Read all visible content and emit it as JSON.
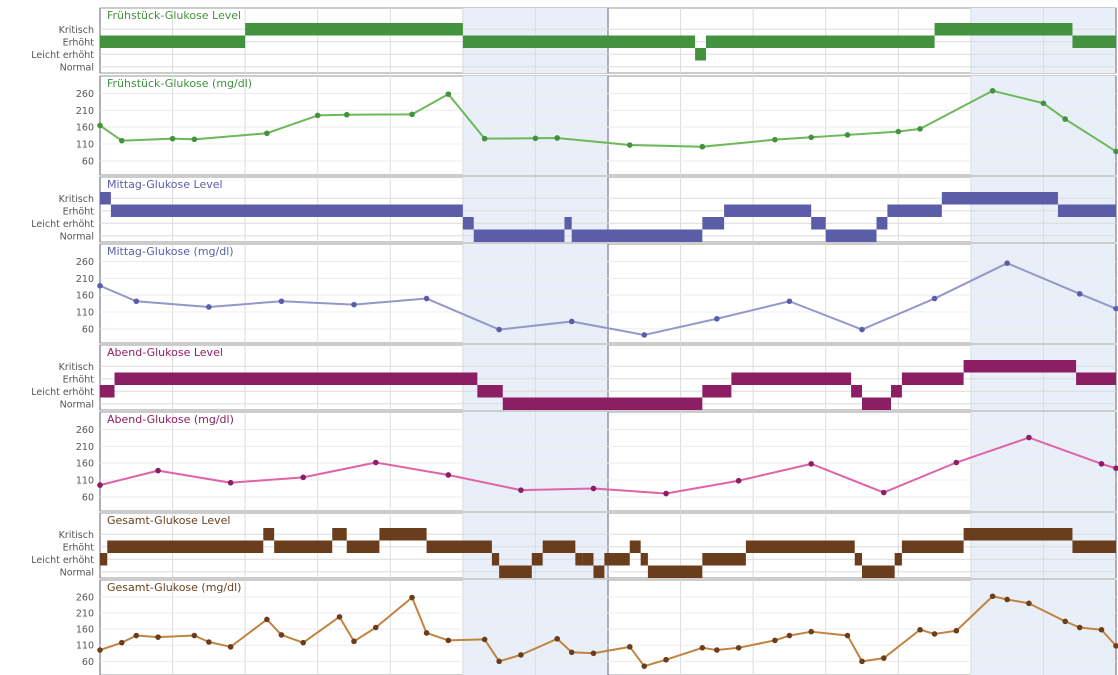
{
  "colors": {
    "fruehstueck_bar": "#43923f",
    "fruehstueck_line": "#6cb85a",
    "fruehstueck_title": "#43923f",
    "mittag_bar": "#5b5da9",
    "mittag_line": "#9497c8",
    "mittag_title": "#5b5da9",
    "abend_bar": "#8c1e63",
    "abend_line": "#df63a6",
    "abend_title": "#8c1e63",
    "gesamt_bar": "#6a3e1d",
    "gesamt_line": "#c08441",
    "gesamt_title": "#6a3e1d",
    "weekend_band": "#e8eff8",
    "grid": "#dcdcdc",
    "panel_border": "#9a9a9a"
  },
  "level_labels": [
    "Kritisch",
    "Erhöht",
    "Leicht erhöht",
    "Normal"
  ],
  "y_ticks": [
    260,
    210,
    160,
    110,
    60
  ],
  "chart_data": [
    {
      "type": "step",
      "title": "Frühstück-Glukose Level",
      "color_key": "fruehstueck_bar",
      "categories": [
        "Kritisch",
        "Erhöht",
        "Leicht erhöht",
        "Normal"
      ],
      "x_range": [
        0,
        14
      ],
      "segments": [
        {
          "x0": 0,
          "x1": 2,
          "level": "Erhöht"
        },
        {
          "x0": 2,
          "x1": 5,
          "level": "Kritisch"
        },
        {
          "x0": 5,
          "x1": 8.2,
          "level": "Erhöht"
        },
        {
          "x0": 8.2,
          "x1": 8.35,
          "level": "Leicht erhöht"
        },
        {
          "x0": 8.35,
          "x1": 11.5,
          "level": "Erhöht"
        },
        {
          "x0": 11.5,
          "x1": 13.4,
          "level": "Kritisch"
        },
        {
          "x0": 13.4,
          "x1": 14,
          "level": "Erhöht"
        }
      ]
    },
    {
      "type": "line",
      "title": "Frühstück-Glukose (mg/dl)",
      "color_key": "fruehstueck_line",
      "x_range": [
        0,
        14
      ],
      "y_range": [
        30,
        300
      ],
      "points": [
        [
          0,
          165
        ],
        [
          0.3,
          120
        ],
        [
          1.0,
          126
        ],
        [
          1.3,
          124
        ],
        [
          2.3,
          142
        ],
        [
          3.0,
          195
        ],
        [
          3.4,
          197
        ],
        [
          4.3,
          198
        ],
        [
          4.8,
          258
        ],
        [
          5.3,
          126
        ],
        [
          6.0,
          127
        ],
        [
          6.3,
          128
        ],
        [
          7.3,
          107
        ],
        [
          8.3,
          102
        ],
        [
          9.3,
          123
        ],
        [
          9.8,
          130
        ],
        [
          10.3,
          137
        ],
        [
          11.0,
          147
        ],
        [
          11.3,
          155
        ],
        [
          12.3,
          268
        ],
        [
          13.0,
          231
        ],
        [
          13.3,
          184
        ],
        [
          14.0,
          88
        ]
      ]
    },
    {
      "type": "step",
      "title": "Mittag-Glukose Level",
      "color_key": "mittag_bar",
      "categories": [
        "Kritisch",
        "Erhöht",
        "Leicht erhöht",
        "Normal"
      ],
      "x_range": [
        0,
        14
      ],
      "segments": [
        {
          "x0": 0,
          "x1": 0.15,
          "level": "Kritisch"
        },
        {
          "x0": 0.15,
          "x1": 5,
          "level": "Erhöht"
        },
        {
          "x0": 5,
          "x1": 5.15,
          "level": "Leicht erhöht"
        },
        {
          "x0": 5.15,
          "x1": 6.4,
          "level": "Normal"
        },
        {
          "x0": 6.4,
          "x1": 6.5,
          "level": "Leicht erhöht"
        },
        {
          "x0": 6.5,
          "x1": 8.3,
          "level": "Normal"
        },
        {
          "x0": 8.3,
          "x1": 8.6,
          "level": "Leicht erhöht"
        },
        {
          "x0": 8.6,
          "x1": 9.8,
          "level": "Erhöht"
        },
        {
          "x0": 9.8,
          "x1": 10.0,
          "level": "Leicht erhöht"
        },
        {
          "x0": 10.0,
          "x1": 10.7,
          "level": "Normal"
        },
        {
          "x0": 10.7,
          "x1": 10.85,
          "level": "Leicht erhöht"
        },
        {
          "x0": 10.85,
          "x1": 11.6,
          "level": "Erhöht"
        },
        {
          "x0": 11.6,
          "x1": 13.2,
          "level": "Kritisch"
        },
        {
          "x0": 13.2,
          "x1": 14,
          "level": "Erhöht"
        }
      ]
    },
    {
      "type": "line",
      "title": "Mittag-Glukose (mg/dl)",
      "color_key": "mittag_line",
      "x_range": [
        0,
        14
      ],
      "y_range": [
        30,
        300
      ],
      "points": [
        [
          0,
          188
        ],
        [
          0.5,
          142
        ],
        [
          1.5,
          125
        ],
        [
          2.5,
          142
        ],
        [
          3.5,
          132
        ],
        [
          4.5,
          150
        ],
        [
          5.5,
          58
        ],
        [
          6.5,
          82
        ],
        [
          7.5,
          42
        ],
        [
          8.5,
          90
        ],
        [
          9.5,
          142
        ],
        [
          10.5,
          58
        ],
        [
          11.5,
          150
        ],
        [
          12.5,
          255
        ],
        [
          13.5,
          164
        ],
        [
          14.0,
          120
        ]
      ]
    },
    {
      "type": "step",
      "title": "Abend-Glukose Level",
      "color_key": "abend_bar",
      "categories": [
        "Kritisch",
        "Erhöht",
        "Leicht erhöht",
        "Normal"
      ],
      "x_range": [
        0,
        14
      ],
      "segments": [
        {
          "x0": 0,
          "x1": 0.2,
          "level": "Leicht erhöht"
        },
        {
          "x0": 0.2,
          "x1": 5.2,
          "level": "Erhöht"
        },
        {
          "x0": 5.2,
          "x1": 5.55,
          "level": "Leicht erhöht"
        },
        {
          "x0": 5.55,
          "x1": 8.3,
          "level": "Normal"
        },
        {
          "x0": 8.3,
          "x1": 8.7,
          "level": "Leicht erhöht"
        },
        {
          "x0": 8.7,
          "x1": 10.35,
          "level": "Erhöht"
        },
        {
          "x0": 10.35,
          "x1": 10.5,
          "level": "Leicht erhöht"
        },
        {
          "x0": 10.5,
          "x1": 10.9,
          "level": "Normal"
        },
        {
          "x0": 10.9,
          "x1": 11.05,
          "level": "Leicht erhöht"
        },
        {
          "x0": 11.05,
          "x1": 11.9,
          "level": "Erhöht"
        },
        {
          "x0": 11.9,
          "x1": 13.45,
          "level": "Kritisch"
        },
        {
          "x0": 13.45,
          "x1": 14,
          "level": "Erhöht"
        }
      ]
    },
    {
      "type": "line",
      "title": "Abend-Glukose (mg/dl)",
      "color_key": "abend_line",
      "x_range": [
        0,
        14
      ],
      "y_range": [
        30,
        300
      ],
      "points": [
        [
          0,
          95
        ],
        [
          0.8,
          138
        ],
        [
          1.8,
          102
        ],
        [
          2.8,
          118
        ],
        [
          3.8,
          162
        ],
        [
          4.8,
          125
        ],
        [
          5.8,
          80
        ],
        [
          6.8,
          85
        ],
        [
          7.8,
          70
        ],
        [
          8.8,
          108
        ],
        [
          9.8,
          158
        ],
        [
          10.8,
          73
        ],
        [
          11.8,
          162
        ],
        [
          12.8,
          236
        ],
        [
          13.8,
          158
        ],
        [
          14.0,
          145
        ]
      ]
    },
    {
      "type": "step",
      "title": "Gesamt-Glukose Level",
      "color_key": "gesamt_bar",
      "categories": [
        "Kritisch",
        "Erhöht",
        "Leicht erhöht",
        "Normal"
      ],
      "x_range": [
        0,
        14
      ],
      "segments": [
        {
          "x0": 0,
          "x1": 0.1,
          "level": "Leicht erhöht"
        },
        {
          "x0": 0.1,
          "x1": 2.25,
          "level": "Erhöht"
        },
        {
          "x0": 2.25,
          "x1": 2.4,
          "level": "Kritisch"
        },
        {
          "x0": 2.4,
          "x1": 3.2,
          "level": "Erhöht"
        },
        {
          "x0": 3.2,
          "x1": 3.4,
          "level": "Kritisch"
        },
        {
          "x0": 3.4,
          "x1": 3.85,
          "level": "Erhöht"
        },
        {
          "x0": 3.85,
          "x1": 4.5,
          "level": "Kritisch"
        },
        {
          "x0": 4.5,
          "x1": 5.4,
          "level": "Erhöht"
        },
        {
          "x0": 5.4,
          "x1": 5.5,
          "level": "Leicht erhöht"
        },
        {
          "x0": 5.5,
          "x1": 5.95,
          "level": "Normal"
        },
        {
          "x0": 5.95,
          "x1": 6.1,
          "level": "Leicht erhöht"
        },
        {
          "x0": 6.1,
          "x1": 6.55,
          "level": "Erhöht"
        },
        {
          "x0": 6.55,
          "x1": 6.65,
          "level": "Leicht erhöht"
        },
        {
          "x0": 6.65,
          "x1": 6.8,
          "level": "Leicht erhöht"
        },
        {
          "x0": 6.8,
          "x1": 6.95,
          "level": "Normal"
        },
        {
          "x0": 6.95,
          "x1": 7.3,
          "level": "Leicht erhöht"
        },
        {
          "x0": 7.3,
          "x1": 7.45,
          "level": "Erhöht"
        },
        {
          "x0": 7.45,
          "x1": 7.55,
          "level": "Leicht erhöht"
        },
        {
          "x0": 7.55,
          "x1": 8.3,
          "level": "Normal"
        },
        {
          "x0": 8.3,
          "x1": 8.9,
          "level": "Leicht erhöht"
        },
        {
          "x0": 8.9,
          "x1": 10.4,
          "level": "Erhöht"
        },
        {
          "x0": 10.4,
          "x1": 10.5,
          "level": "Leicht erhöht"
        },
        {
          "x0": 10.5,
          "x1": 10.95,
          "level": "Normal"
        },
        {
          "x0": 10.95,
          "x1": 11.05,
          "level": "Leicht erhöht"
        },
        {
          "x0": 11.05,
          "x1": 11.9,
          "level": "Erhöht"
        },
        {
          "x0": 11.9,
          "x1": 13.4,
          "level": "Kritisch"
        },
        {
          "x0": 13.4,
          "x1": 14,
          "level": "Erhöht"
        }
      ]
    },
    {
      "type": "line",
      "title": "Gesamt-Glukose (mg/dl)",
      "color_key": "gesamt_line",
      "x_range": [
        0,
        14
      ],
      "y_range": [
        30,
        300
      ],
      "points": [
        [
          0,
          95
        ],
        [
          0.3,
          118
        ],
        [
          0.5,
          140
        ],
        [
          0.8,
          135
        ],
        [
          1.3,
          140
        ],
        [
          1.5,
          120
        ],
        [
          1.8,
          105
        ],
        [
          2.3,
          190
        ],
        [
          2.5,
          142
        ],
        [
          2.8,
          118
        ],
        [
          3.3,
          198
        ],
        [
          3.5,
          122
        ],
        [
          3.8,
          165
        ],
        [
          4.3,
          258
        ],
        [
          4.5,
          148
        ],
        [
          4.8,
          125
        ],
        [
          5.3,
          128
        ],
        [
          5.5,
          60
        ],
        [
          5.8,
          80
        ],
        [
          6.3,
          130
        ],
        [
          6.5,
          88
        ],
        [
          6.8,
          85
        ],
        [
          7.3,
          105
        ],
        [
          7.5,
          45
        ],
        [
          7.8,
          65
        ],
        [
          8.3,
          102
        ],
        [
          8.5,
          95
        ],
        [
          8.8,
          102
        ],
        [
          9.3,
          125
        ],
        [
          9.5,
          140
        ],
        [
          9.8,
          152
        ],
        [
          10.3,
          140
        ],
        [
          10.5,
          60
        ],
        [
          10.8,
          70
        ],
        [
          11.3,
          158
        ],
        [
          11.5,
          145
        ],
        [
          11.8,
          155
        ],
        [
          12.3,
          262
        ],
        [
          12.5,
          252
        ],
        [
          12.8,
          240
        ],
        [
          13.3,
          184
        ],
        [
          13.5,
          165
        ],
        [
          13.8,
          158
        ],
        [
          14.0,
          108
        ]
      ]
    }
  ],
  "weekend_bands": [
    [
      5,
      7
    ],
    [
      12,
      14
    ]
  ],
  "week_boundaries": [
    0,
    7,
    14
  ]
}
